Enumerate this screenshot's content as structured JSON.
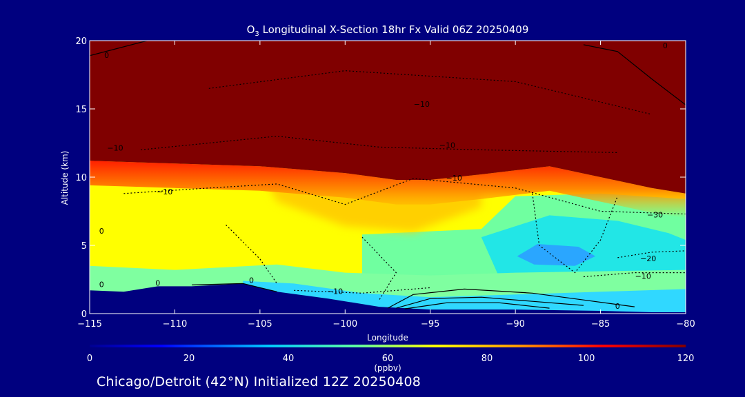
{
  "chart_data": {
    "type": "heatmap",
    "title_main": "O",
    "title_sub": "3",
    "title_rest": " Longitudinal X-Section 18hr  Fx Valid 06Z 20250409",
    "xlabel": "Longitude",
    "ylabel": "Altitude (km)",
    "xlim": [
      -115,
      -80
    ],
    "ylim": [
      0,
      20
    ],
    "x_ticks": [
      -115,
      -110,
      -105,
      -100,
      -95,
      -90,
      -85,
      -80
    ],
    "x_tick_labels": [
      "−115",
      "−110",
      "−105",
      "−100",
      "−95",
      "−90",
      "−85",
      "−80"
    ],
    "y_ticks": [
      0,
      5,
      10,
      15,
      20
    ],
    "y_tick_labels": [
      "0",
      "5",
      "10",
      "15",
      "20"
    ],
    "colorbar": {
      "ticks": [
        0,
        20,
        40,
        60,
        80,
        100,
        120
      ],
      "tick_labels": [
        "0",
        "20",
        "40",
        "60",
        "80",
        "100",
        "120"
      ],
      "unit": "(ppbv)",
      "range": [
        0,
        120
      ]
    },
    "tropopause_altitude_km": {
      "lon": [
        -115,
        -110,
        -105,
        -100,
        -97,
        -95,
        -92,
        -88,
        -85,
        -82,
        -80
      ],
      "alt": [
        11.2,
        11.0,
        10.8,
        10.3,
        9.8,
        9.8,
        10.2,
        10.8,
        10.0,
        9.2,
        8.8
      ]
    },
    "surface_altitude_km": {
      "lon": [
        -115,
        -113,
        -111,
        -109,
        -106,
        -104,
        -101,
        -98,
        -95,
        -90,
        -85,
        -82,
        -80
      ],
      "alt": [
        1.7,
        1.6,
        2.0,
        2.0,
        2.2,
        1.6,
        1.1,
        0.5,
        0.3,
        0.3,
        0.2,
        0.1,
        0.1
      ]
    },
    "low_ozone_core": {
      "lon": -87.5,
      "alt_km": 4.2,
      "value_ppbv": 30
    },
    "contour_labels": [
      {
        "text": "0",
        "lon": -111,
        "alt": 2.2
      },
      {
        "text": "0",
        "lon": -105.5,
        "alt": 2.4
      },
      {
        "text": "0",
        "lon": -114.3,
        "alt": 6.0
      },
      {
        "text": "0",
        "lon": -114.3,
        "alt": 2.1
      },
      {
        "text": "0",
        "lon": -114.0,
        "alt": 18.9
      },
      {
        "text": "0",
        "lon": -84.0,
        "alt": 0.5
      },
      {
        "text": "0",
        "lon": -81.2,
        "alt": 19.6
      },
      {
        "text": "−10",
        "lon": -95.5,
        "alt": 15.3
      },
      {
        "text": "−10",
        "lon": -94.0,
        "alt": 12.3
      },
      {
        "text": "−10",
        "lon": -113.5,
        "alt": 12.1
      },
      {
        "text": "−10",
        "lon": -110.6,
        "alt": 8.9
      },
      {
        "text": "−10",
        "lon": -93.6,
        "alt": 9.9
      },
      {
        "text": "−10",
        "lon": -100.6,
        "alt": 1.6
      },
      {
        "text": "−10",
        "lon": -82.5,
        "alt": 2.7
      },
      {
        "text": "−20",
        "lon": -82.2,
        "alt": 4.0
      },
      {
        "text": "−30",
        "lon": -81.8,
        "alt": 7.2
      }
    ]
  },
  "footer": "Chicago/Detroit (42°N) Initialized 12Z 20250408"
}
